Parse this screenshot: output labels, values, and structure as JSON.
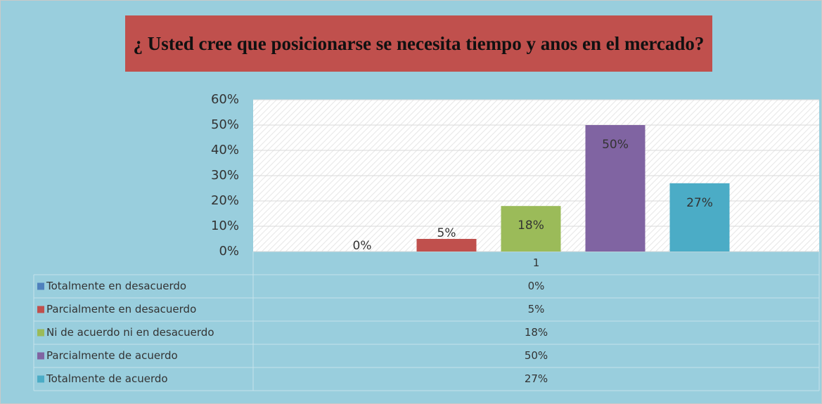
{
  "chart_data": {
    "type": "bar",
    "title": "¿ Usted cree que posicionarse se necesita tiempo y anos en el mercado?",
    "categories": [
      "1"
    ],
    "series": [
      {
        "name": "Totalmente en desacuerdo",
        "color": "#4f81bd",
        "values": [
          0
        ],
        "value_labels": [
          "0%"
        ]
      },
      {
        "name": "Parcialmente en desacuerdo",
        "color": "#c0504d",
        "values": [
          5
        ],
        "value_labels": [
          "5%"
        ]
      },
      {
        "name": "Ni de acuerdo ni en desacuerdo",
        "color": "#9bbb59",
        "values": [
          18
        ],
        "value_labels": [
          "18%"
        ]
      },
      {
        "name": "Parcialmente de acuerdo",
        "color": "#8064a2",
        "values": [
          50
        ],
        "value_labels": [
          "50%"
        ]
      },
      {
        "name": "Totalmente de acuerdo",
        "color": "#4bacc6",
        "values": [
          27
        ],
        "value_labels": [
          "27%"
        ]
      }
    ],
    "ylim": [
      0,
      60
    ],
    "yticks": [
      {
        "value": 0,
        "label": "0%"
      },
      {
        "value": 10,
        "label": "10%"
      },
      {
        "value": 20,
        "label": "20%"
      },
      {
        "value": 30,
        "label": "30%"
      },
      {
        "value": 40,
        "label": "40%"
      },
      {
        "value": 50,
        "label": "50%"
      },
      {
        "value": 60,
        "label": "60%"
      }
    ],
    "grid": true
  }
}
